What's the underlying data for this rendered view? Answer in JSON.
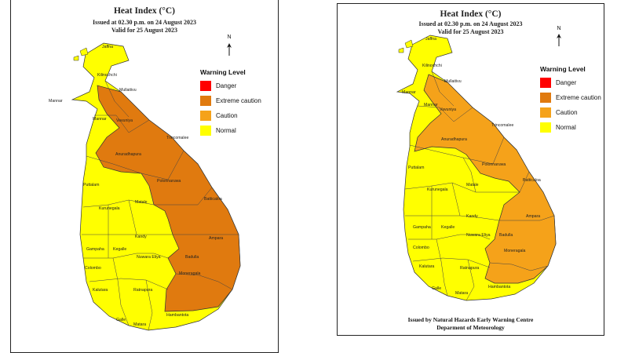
{
  "colors": {
    "danger": "#ff0000",
    "extreme_caution": "#e07a0f",
    "caution": "#f5a21a",
    "normal": "#ffff00"
  },
  "left_map": {
    "title": "Heat Index (°C)",
    "issued": "Issued at 02.30 p.m. on 24 August 2023",
    "valid": "Valid for 25 August 2023",
    "north_label": "N",
    "legend_title": "Warning Level",
    "legend": [
      "Danger",
      "Extreme caution",
      "Caution",
      "Normal"
    ],
    "places": [
      "Jaffna",
      "Kilinochchi",
      "Mullaitivu",
      "Mannar",
      "Mannar",
      "Vavuniya",
      "Trincomalee",
      "Anuradhapura",
      "Puttalam",
      "Polonnaruwa",
      "Kurunegala",
      "Matale",
      "Batticaloa",
      "Kandy",
      "Ampara",
      "Gampaha",
      "Kegalle",
      "Nuwara Eliya",
      "Badulla",
      "Colombo",
      "Moneragala",
      "Kalutara",
      "Ratnapura",
      "Hambantota",
      "Galle",
      "Matara"
    ]
  },
  "right_map": {
    "title": "Heat Index (°C)",
    "issued": "Issued at 02.30 p.m. on 24 August 2023",
    "valid": "Valid for 25 August 2023",
    "north_label": "N",
    "legend_title": "Warning Level",
    "legend": [
      "Danger",
      "Extreme caution",
      "Caution",
      "Normal"
    ],
    "places": [
      "Jaffna",
      "Kilinochchi",
      "Mullaitivu",
      "Mannar",
      "Mannar",
      "Vavuniya",
      "Trincomalee",
      "Anuradhapura",
      "Puttalam",
      "Polonnaruwa",
      "Kurunegala",
      "Matale",
      "Batticaloa",
      "Kandy",
      "Ampara",
      "Gampaha",
      "Kegalle",
      "Nuwara Eliya",
      "Badulla",
      "Colombo",
      "Moneragala",
      "Kalutara",
      "Ratnapura",
      "Hambantota",
      "Galle",
      "Matara"
    ],
    "footer_line1": "Issued by Natural Hazards Early Warning Centre",
    "footer_line2": "Deparment of Meteorology"
  }
}
